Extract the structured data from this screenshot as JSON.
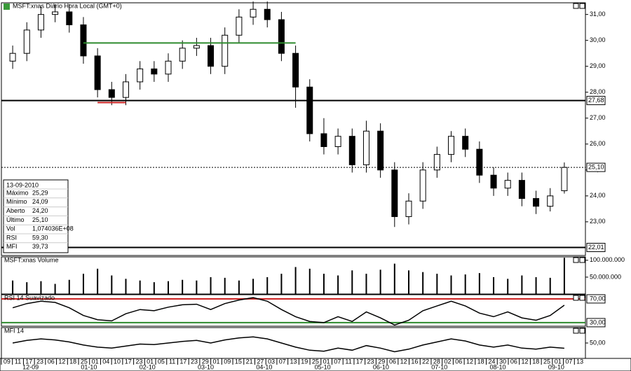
{
  "chart_data": [
    {
      "type": "candlestick",
      "title": "MSFT:xnas Diário Hora Local (GMT+0)",
      "open": [
        29.2,
        29.5,
        30.4,
        31.0,
        31.1,
        30.6,
        29.4,
        28.1,
        27.8,
        28.4,
        28.9,
        28.7,
        29.2,
        29.7,
        29.8,
        29.0,
        30.2,
        30.9,
        31.2,
        30.8,
        29.5,
        28.2,
        26.4,
        25.9,
        26.3,
        25.2,
        26.5,
        25.0,
        23.2,
        23.8,
        25.0,
        25.6,
        26.3,
        25.8,
        24.8,
        24.3,
        24.6,
        23.9,
        23.6,
        24.2
      ],
      "high": [
        29.8,
        30.7,
        31.3,
        31.4,
        31.4,
        30.9,
        29.7,
        28.4,
        28.7,
        29.2,
        29.2,
        29.5,
        30.0,
        30.1,
        30.1,
        30.5,
        31.2,
        31.5,
        31.5,
        31.1,
        29.8,
        28.5,
        27.0,
        26.6,
        26.6,
        26.9,
        26.8,
        25.3,
        24.1,
        25.3,
        25.9,
        26.5,
        26.6,
        26.1,
        25.1,
        24.9,
        24.9,
        24.2,
        24.3,
        25.29
      ],
      "low": [
        28.9,
        29.2,
        30.1,
        30.7,
        30.3,
        29.1,
        27.8,
        27.5,
        27.5,
        28.1,
        28.4,
        28.4,
        28.9,
        29.4,
        28.7,
        28.7,
        29.9,
        30.6,
        30.5,
        29.2,
        27.4,
        26.1,
        25.6,
        25.6,
        24.9,
        24.9,
        24.7,
        22.8,
        22.9,
        23.5,
        24.7,
        25.3,
        25.5,
        24.5,
        24.0,
        24.0,
        23.6,
        23.3,
        23.4,
        24.09
      ],
      "close": [
        29.5,
        30.4,
        31.0,
        31.1,
        30.6,
        29.4,
        28.1,
        27.8,
        28.4,
        28.9,
        28.7,
        29.2,
        29.7,
        29.8,
        29.0,
        30.2,
        30.9,
        31.2,
        30.8,
        29.5,
        28.2,
        26.4,
        25.9,
        26.3,
        25.2,
        26.5,
        25.0,
        23.2,
        23.8,
        25.0,
        25.6,
        26.3,
        25.8,
        24.8,
        24.3,
        24.6,
        23.9,
        23.6,
        24.0,
        25.1
      ],
      "ylim": [
        21.7,
        31.45
      ],
      "yticks": [
        {
          "value": 31,
          "label": "31,00"
        },
        {
          "value": 30,
          "label": "30,00"
        },
        {
          "value": 29,
          "label": "29,00"
        },
        {
          "value": 28,
          "label": "28,00"
        },
        {
          "value": 27,
          "label": "27,00"
        },
        {
          "value": 26,
          "label": "26,00"
        },
        {
          "value": 25,
          "label": "25,00"
        },
        {
          "value": 24,
          "label": "24,00"
        },
        {
          "value": 23,
          "label": "23,00"
        }
      ],
      "levels": [
        {
          "value": 27.68,
          "label": "27,68",
          "style": "solid"
        },
        {
          "value": 25.1,
          "label": "25,10",
          "style": "dotted"
        },
        {
          "value": 22.01,
          "label": "22,01",
          "style": "solid"
        }
      ],
      "segments": [
        {
          "value": 29.9,
          "from": 5,
          "to": 20,
          "color": "#2e8b2e"
        },
        {
          "value": 27.6,
          "from": 6,
          "to": 8,
          "color": "#cc2222"
        }
      ]
    },
    {
      "type": "bar",
      "title": "MSFT:xnas Volume",
      "color": "#000000",
      "values": [
        40000000,
        35000000,
        38000000,
        30000000,
        42000000,
        60000000,
        75000000,
        55000000,
        45000000,
        40000000,
        35000000,
        38000000,
        42000000,
        40000000,
        50000000,
        48000000,
        40000000,
        45000000,
        50000000,
        60000000,
        80000000,
        75000000,
        60000000,
        55000000,
        70000000,
        60000000,
        72000000,
        90000000,
        70000000,
        65000000,
        60000000,
        55000000,
        58000000,
        62000000,
        50000000,
        45000000,
        55000000,
        50000000,
        48000000,
        107403600
      ],
      "ylim": [
        0,
        110000000
      ],
      "yticks": [
        {
          "value": 50000000,
          "label": "50.000.000"
        },
        {
          "value": 100000000,
          "label": "100.000.000"
        }
      ]
    },
    {
      "type": "line",
      "title": "RSI 14 Suavizado",
      "color": "#000000",
      "values": [
        55,
        62,
        66,
        64,
        55,
        42,
        35,
        33,
        45,
        52,
        50,
        56,
        60,
        61,
        52,
        62,
        68,
        72,
        66,
        52,
        40,
        32,
        30,
        40,
        32,
        48,
        38,
        26,
        34,
        50,
        58,
        66,
        58,
        46,
        40,
        48,
        38,
        34,
        42,
        59.3
      ],
      "ylim": [
        24,
        77
      ],
      "yticks": [
        {
          "value": 70,
          "label": "70,00",
          "color": "#cc2222"
        },
        {
          "value": 30,
          "label": "30,00",
          "color": "#2e8b2e"
        }
      ]
    },
    {
      "type": "line",
      "title": "MFI 14",
      "color": "#000000",
      "values": [
        50,
        55,
        58,
        56,
        52,
        46,
        42,
        40,
        44,
        48,
        47,
        50,
        53,
        55,
        50,
        56,
        60,
        62,
        58,
        50,
        42,
        36,
        34,
        40,
        36,
        45,
        40,
        33,
        38,
        46,
        52,
        58,
        54,
        46,
        42,
        46,
        40,
        38,
        42,
        39.73
      ],
      "ylim": [
        20,
        80
      ],
      "yticks": [
        {
          "value": 50,
          "label": "50,00"
        }
      ]
    }
  ],
  "info_box": {
    "date": "13-09-2010",
    "rows": [
      [
        "Máximo",
        "25,29"
      ],
      [
        "Mínimo",
        "24,09"
      ],
      [
        "Aberto",
        "24,20"
      ],
      [
        "Último",
        "25,10"
      ],
      [
        "Vol",
        "1,074036E+08"
      ],
      [
        "RSI",
        "59,30"
      ],
      [
        "MFI",
        "39,73"
      ]
    ]
  },
  "x_axis": {
    "days": [
      "09",
      "11",
      "17",
      "23",
      "06",
      "12",
      "18",
      "25",
      "01",
      "04",
      "10",
      "17",
      "23",
      "01",
      "05",
      "11",
      "17",
      "23",
      "29",
      "01",
      "09",
      "15",
      "21",
      "27",
      "03",
      "07",
      "13",
      "19",
      "25",
      "01",
      "07",
      "11",
      "17",
      "23",
      "29",
      "06",
      "12",
      "16",
      "22",
      "28",
      "02",
      "06",
      "12",
      "18",
      "24",
      "30",
      "06",
      "12",
      "18",
      "25",
      "01",
      "07",
      "13"
    ],
    "months": [
      "12-09",
      "01-10",
      "02-10",
      "03-10",
      "04-10",
      "05-10",
      "06-10",
      "07-10",
      "08-10",
      "09-10"
    ]
  }
}
